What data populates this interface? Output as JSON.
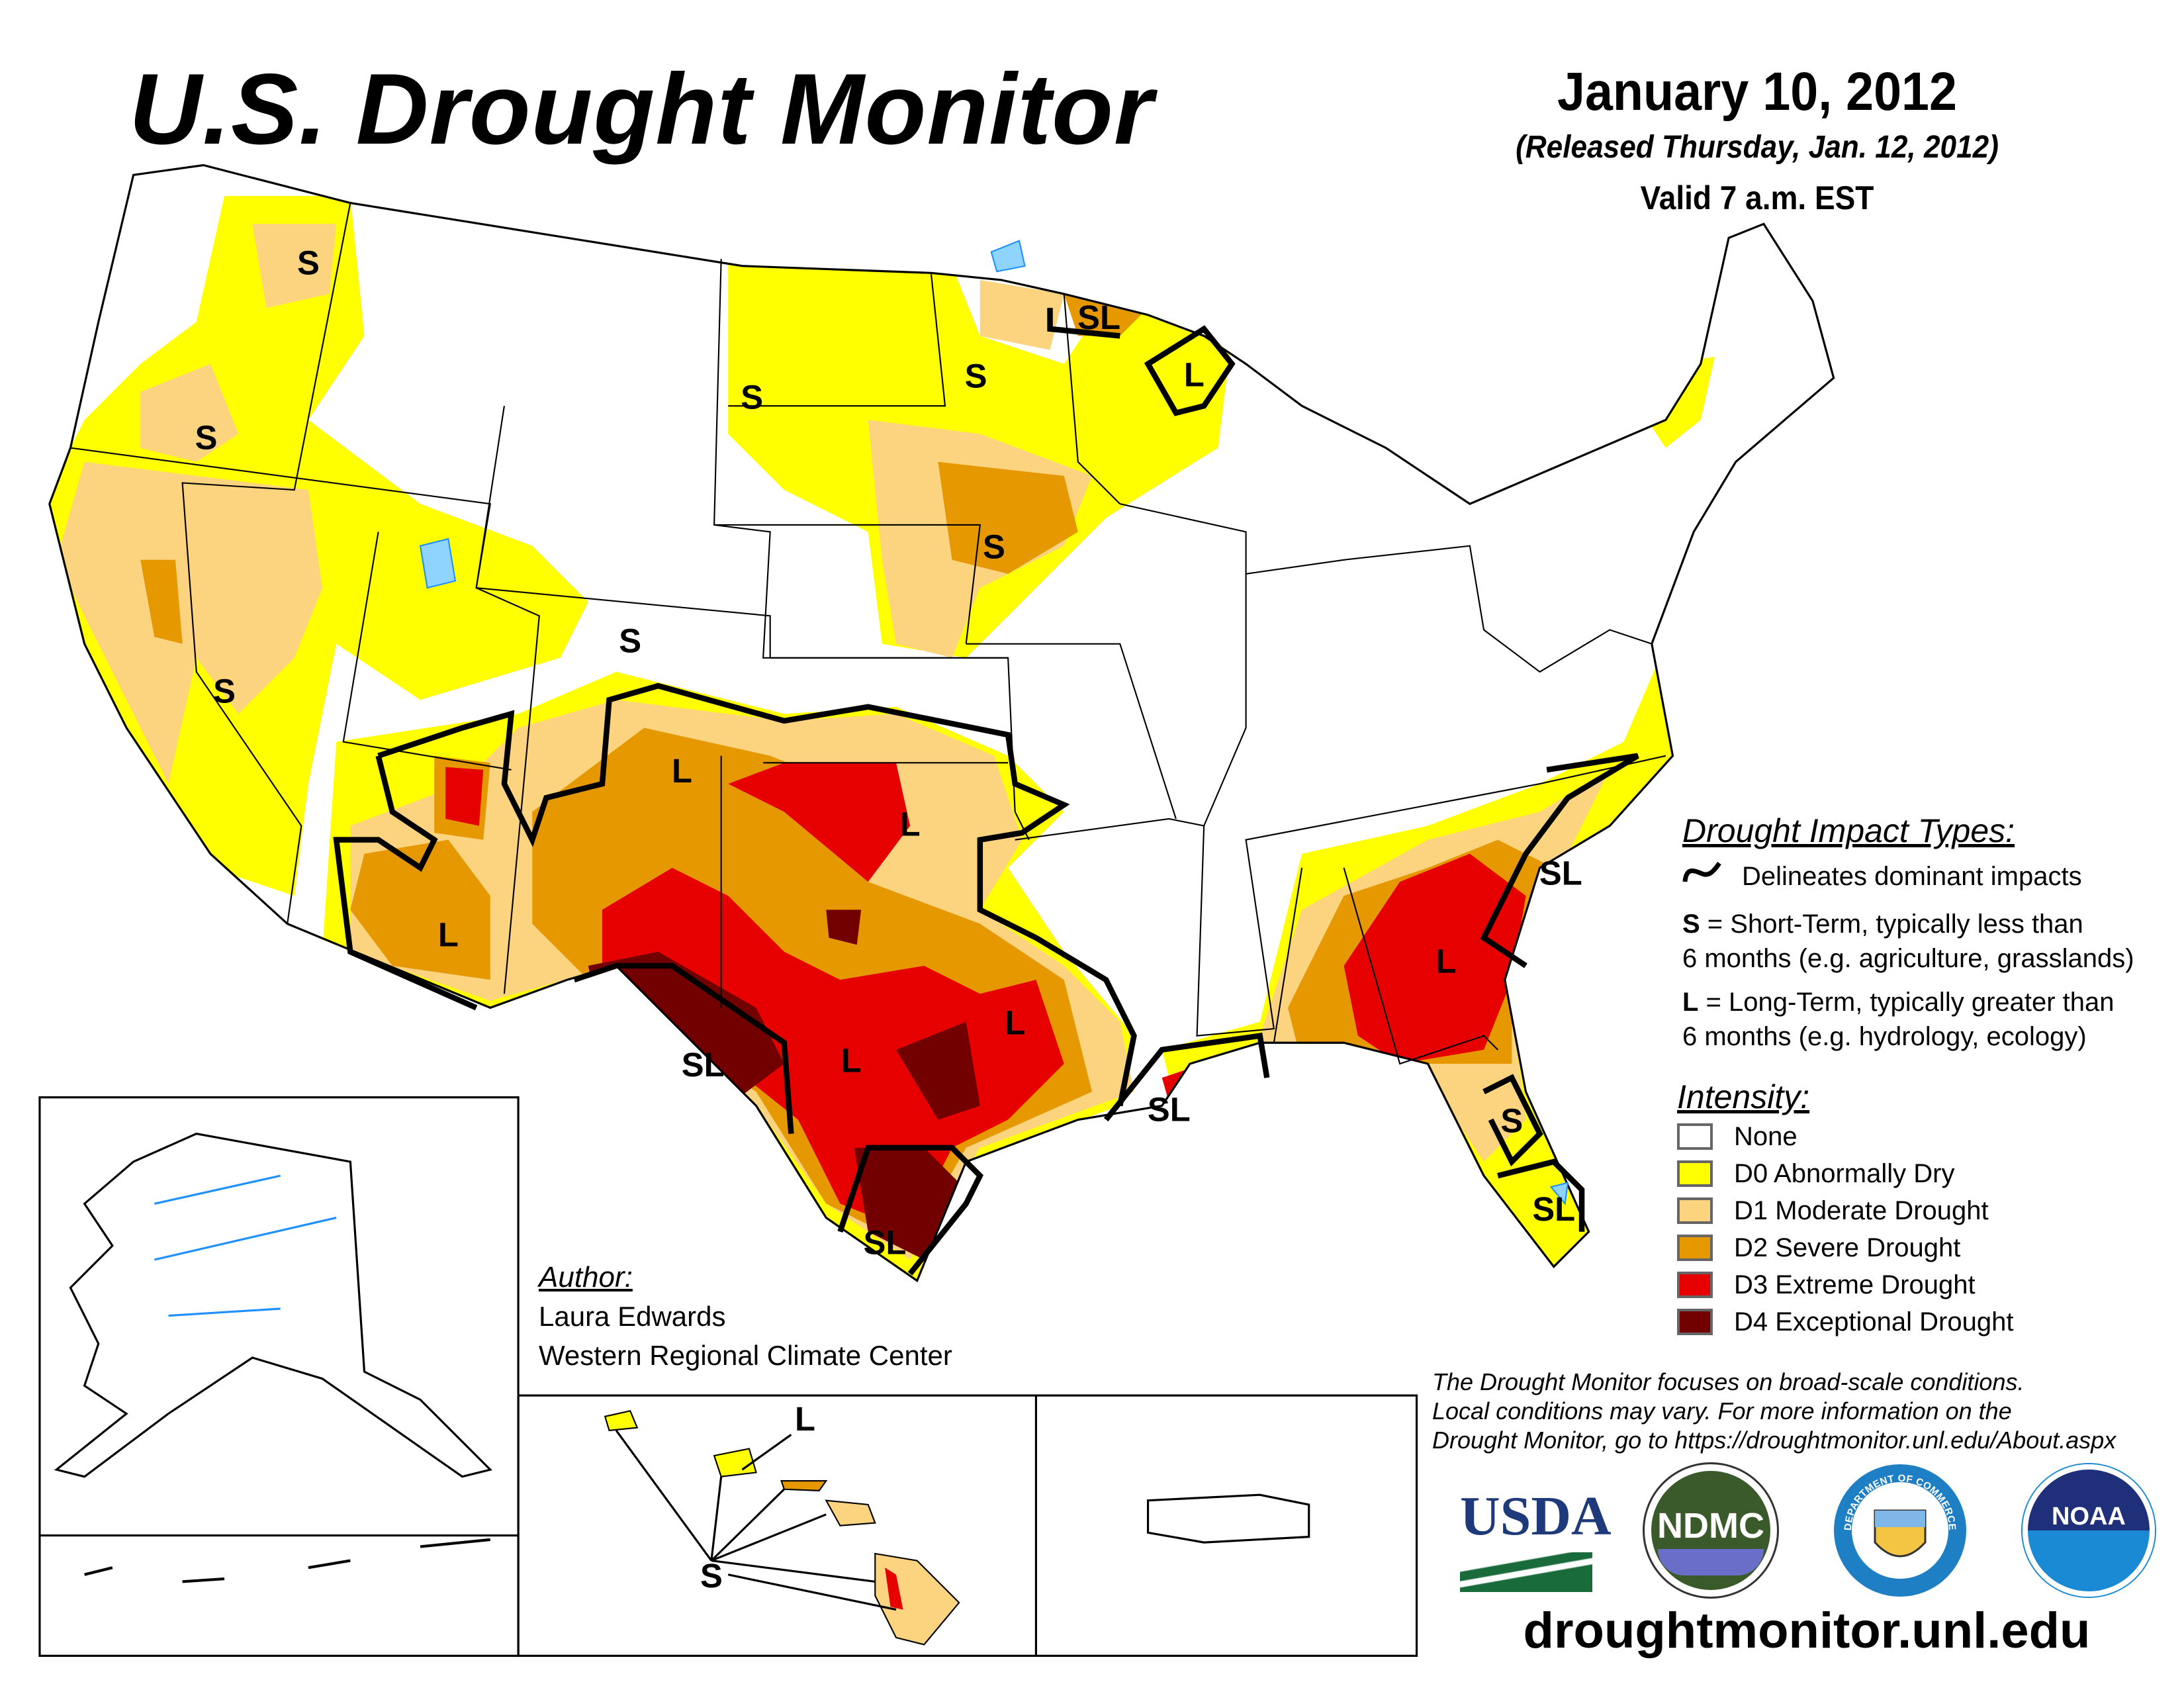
{
  "header": {
    "title": "U.S. Drought Monitor",
    "date": "January 10, 2012",
    "released": "(Released Thursday, Jan. 12, 2012)",
    "valid": "Valid 7 a.m. EST"
  },
  "map": {
    "colors": {
      "none": "#ffffff",
      "d0": "#ffff00",
      "d1": "#fcd37f",
      "d2": "#ffaa00",
      "d3": "#e60000",
      "d4": "#730000",
      "water": "#8fd3ff",
      "river": "#1e90ff"
    },
    "labels": [
      "S",
      "S",
      "S",
      "S",
      "S",
      "SL",
      "L",
      "S",
      "S",
      "L",
      "L",
      "L",
      "SL",
      "L",
      "L",
      "SL",
      "SL",
      "L",
      "SL",
      "S",
      "SL"
    ],
    "hawaii_labels": [
      "L",
      "S"
    ]
  },
  "legend": {
    "impact_title": "Drought Impact Types:",
    "delineates": "Delineates dominant impacts",
    "s_key": "S",
    "s_line1": " = Short-Term, typically less than",
    "s_line2": "6 months (e.g. agriculture, grasslands)",
    "l_key": "L",
    "l_line1": " = Long-Term, typically greater than",
    "l_line2": "6 months (e.g. hydrology, ecology)",
    "intensity_title": "Intensity:",
    "items": [
      {
        "label": "None",
        "color": "#ffffff"
      },
      {
        "label": "D0 Abnormally Dry",
        "color": "#ffff00"
      },
      {
        "label": "D1 Moderate Drought",
        "color": "#fcd37f"
      },
      {
        "label": "D2 Severe Drought",
        "color": "#e69800"
      },
      {
        "label": "D3 Extreme Drought",
        "color": "#e60000"
      },
      {
        "label": "D4 Exceptional Drought",
        "color": "#730000"
      }
    ]
  },
  "author": {
    "heading": "Author:",
    "name": "Laura Edwards",
    "org": "Western Regional Climate Center"
  },
  "disclaimer": [
    "The Drought Monitor focuses on broad-scale conditions.",
    "Local conditions may vary. For more information on the",
    "Drought Monitor, go to https://droughtmonitor.unl.edu/About.aspx"
  ],
  "logos": {
    "usda": "USDA",
    "ndmc": "NDMC",
    "doc": "DEPARTMENT OF COMMERCE",
    "noaa": "NOAA"
  },
  "url": "droughtmonitor.unl.edu"
}
